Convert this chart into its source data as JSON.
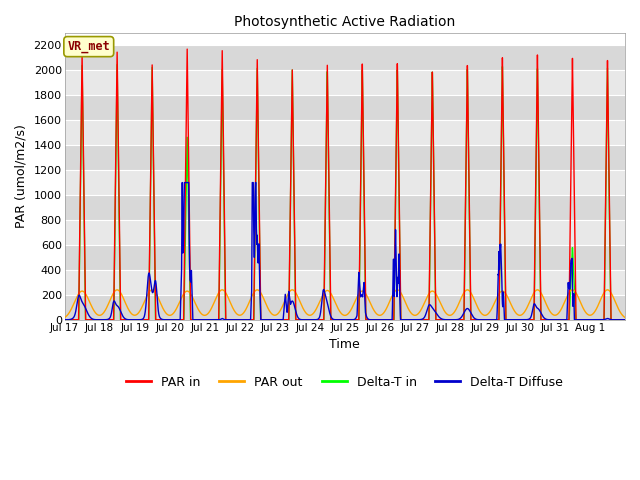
{
  "title": "Photosynthetic Active Radiation",
  "ylabel": "PAR (umol/m2/s)",
  "xlabel": "Time",
  "ylim": [
    0,
    2300
  ],
  "yticks": [
    0,
    200,
    400,
    600,
    800,
    1000,
    1200,
    1400,
    1600,
    1800,
    2000,
    2200
  ],
  "background_color": "#ffffff",
  "plot_bg_color": "#e8e8e8",
  "band_colors": [
    "#e0e0e0",
    "#d0d0d0"
  ],
  "grid_color": "#ffffff",
  "colors": {
    "PAR_in": "#ff0000",
    "PAR_out": "#ffa500",
    "Delta_T_in": "#00ff00",
    "Delta_T_Diffuse": "#0000cc"
  },
  "legend_labels": [
    "PAR in",
    "PAR out",
    "Delta-T in",
    "Delta-T Diffuse"
  ],
  "watermark_text": "VR_met",
  "n_days": 16,
  "x_tick_labels": [
    "Jul 17",
    "Jul 18",
    "Jul 19",
    "Jul 20",
    "Jul 21",
    "Jul 22",
    "Jul 23",
    "Jul 24",
    "Jul 25",
    "Jul 26",
    "Jul 27",
    "Jul 28",
    "Jul 29",
    "Jul 30",
    "Jul 31",
    "Aug 1"
  ],
  "figsize": [
    6.4,
    4.8
  ],
  "dpi": 100
}
